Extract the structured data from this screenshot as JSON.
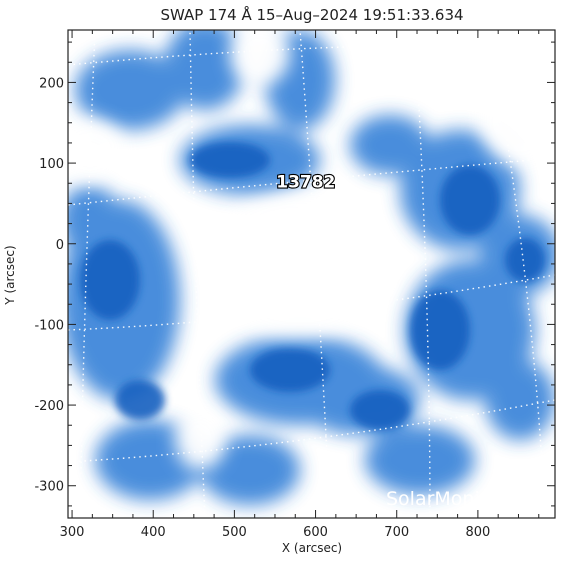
{
  "chart_data": {
    "type": "heatmap",
    "title": "SWAP 174 Å 15–Aug–2024 19:51:33.634",
    "xlabel": "X (arcsec)",
    "ylabel": "Y (arcsec)",
    "xlim": [
      295,
      895
    ],
    "ylim": [
      -340,
      265
    ],
    "x_ticks": [
      300,
      400,
      500,
      600,
      700,
      800
    ],
    "y_ticks": [
      -300,
      -200,
      -100,
      0,
      100,
      200
    ],
    "colormap": [
      "#ffffff",
      "#1e6fd0"
    ],
    "grid": "heliographic, dotted white",
    "active_regions": [
      {
        "label": "13782",
        "x": 588,
        "y": 70
      }
    ],
    "watermark": "SolarMonitor.org"
  },
  "colors": {
    "image_blue": "#1e6fd0",
    "image_light": "#cfe3f8",
    "background": "#ffffff",
    "axis": "#222222"
  }
}
